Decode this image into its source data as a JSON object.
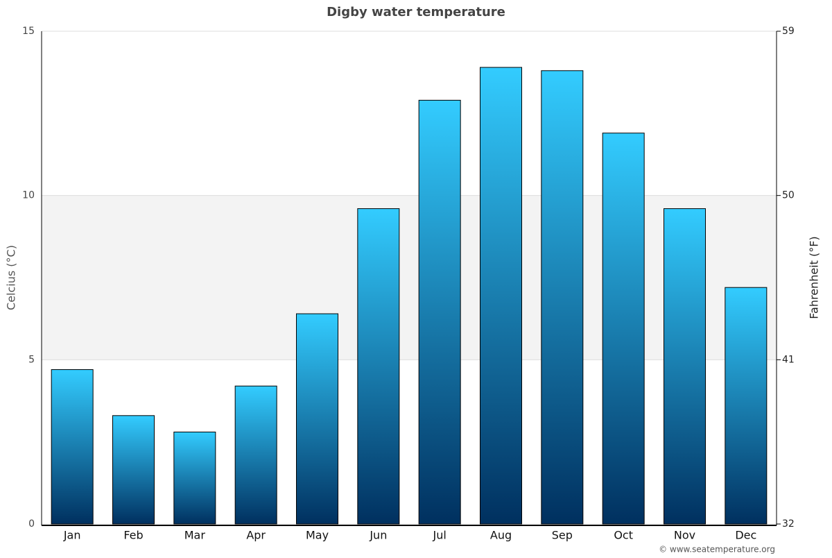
{
  "chart_data": {
    "type": "bar",
    "title": "Digby water temperature",
    "y_label": "Celcius (°C)",
    "y2_label": "Fahrenheit (°F)",
    "categories": [
      "Jan",
      "Feb",
      "Mar",
      "Apr",
      "May",
      "Jun",
      "Jul",
      "Aug",
      "Sep",
      "Oct",
      "Nov",
      "Dec"
    ],
    "values": [
      4.7,
      3.3,
      2.8,
      4.2,
      6.4,
      9.6,
      12.9,
      13.9,
      13.8,
      11.9,
      9.6,
      7.2
    ],
    "gradient": [
      "#33ccff",
      "#00305f"
    ],
    "ylim": [
      0,
      15
    ],
    "yticks": [
      0,
      5,
      10,
      15
    ],
    "y2lim": [
      32,
      59
    ],
    "y2ticks": [
      32,
      41,
      50,
      59
    ],
    "plot_band": [
      5,
      10
    ],
    "grid": true,
    "credit": "© www.seatemperature.org"
  }
}
